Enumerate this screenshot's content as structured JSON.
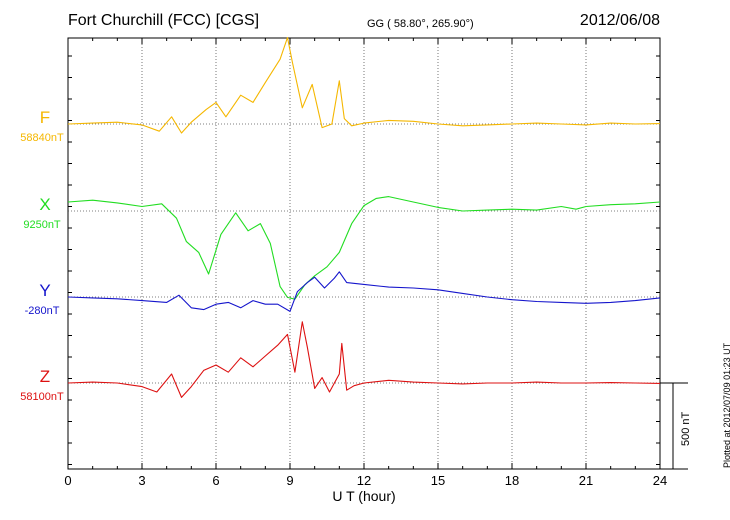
{
  "header": {
    "station": "Fort Churchill (FCC)  [CGS]",
    "coords": "GG ( 58.80°, 265.90°)",
    "date": "2012/06/08"
  },
  "footer": {
    "plotted": "Plotted at 2012/07/09 01:23  UT"
  },
  "chart_data": {
    "type": "line",
    "xlabel": "U T (hour)",
    "xlim": [
      0,
      24
    ],
    "xticks": [
      0,
      3,
      6,
      9,
      12,
      15,
      18,
      21,
      24
    ],
    "xtick_labels": [
      "0",
      "3",
      "6",
      "9",
      "12",
      "15",
      "18",
      "21",
      "24"
    ],
    "scale_bar_label": "500 nT",
    "scale_bar_nT": 500,
    "series": [
      {
        "name": "F",
        "baseline_label": "58840nT",
        "baseline_nT": 58840,
        "color": "#f5b700",
        "points": [
          [
            0,
            58840
          ],
          [
            1,
            58845
          ],
          [
            2,
            58850
          ],
          [
            3,
            58835
          ],
          [
            3.7,
            58800
          ],
          [
            4.2,
            58880
          ],
          [
            4.6,
            58790
          ],
          [
            5,
            58850
          ],
          [
            5.6,
            58920
          ],
          [
            6,
            58960
          ],
          [
            6.4,
            58880
          ],
          [
            7,
            59000
          ],
          [
            7.5,
            58960
          ],
          [
            8,
            59070
          ],
          [
            8.6,
            59200
          ],
          [
            8.9,
            59320
          ],
          [
            9.1,
            59180
          ],
          [
            9.5,
            58930
          ],
          [
            9.9,
            59060
          ],
          [
            10.3,
            58820
          ],
          [
            10.7,
            58840
          ],
          [
            11,
            59080
          ],
          [
            11.2,
            58870
          ],
          [
            11.5,
            58830
          ],
          [
            12,
            58845
          ],
          [
            13,
            58860
          ],
          [
            14,
            58855
          ],
          [
            15,
            58840
          ],
          [
            16,
            58830
          ],
          [
            17,
            58835
          ],
          [
            18,
            58840
          ],
          [
            19,
            58845
          ],
          [
            20,
            58840
          ],
          [
            21,
            58835
          ],
          [
            22,
            58845
          ],
          [
            23,
            58840
          ],
          [
            24,
            58842
          ]
        ]
      },
      {
        "name": "X",
        "baseline_label": "9250nT",
        "baseline_nT": 9250,
        "color": "#22dd22",
        "points": [
          [
            0,
            9300
          ],
          [
            1,
            9310
          ],
          [
            2,
            9295
          ],
          [
            3,
            9275
          ],
          [
            3.8,
            9290
          ],
          [
            4.4,
            9210
          ],
          [
            4.8,
            9080
          ],
          [
            5.3,
            9020
          ],
          [
            5.7,
            8900
          ],
          [
            6.2,
            9120
          ],
          [
            6.8,
            9240
          ],
          [
            7.3,
            9140
          ],
          [
            7.8,
            9180
          ],
          [
            8.2,
            9070
          ],
          [
            8.6,
            8830
          ],
          [
            8.9,
            8770
          ],
          [
            9.2,
            8760
          ],
          [
            9.6,
            8840
          ],
          [
            10,
            8890
          ],
          [
            10.5,
            8940
          ],
          [
            11,
            9020
          ],
          [
            11.5,
            9180
          ],
          [
            12,
            9280
          ],
          [
            12.5,
            9320
          ],
          [
            13,
            9330
          ],
          [
            14,
            9300
          ],
          [
            15,
            9270
          ],
          [
            16,
            9250
          ],
          [
            17,
            9255
          ],
          [
            18,
            9260
          ],
          [
            19,
            9255
          ],
          [
            20,
            9275
          ],
          [
            20.6,
            9260
          ],
          [
            21,
            9275
          ],
          [
            22,
            9285
          ],
          [
            23,
            9290
          ],
          [
            24,
            9300
          ]
        ]
      },
      {
        "name": "Y",
        "baseline_label": "-280nT",
        "baseline_nT": -280,
        "color": "#1515cc",
        "points": [
          [
            0,
            -280
          ],
          [
            1,
            -285
          ],
          [
            2,
            -290
          ],
          [
            3,
            -300
          ],
          [
            4,
            -310
          ],
          [
            4.5,
            -270
          ],
          [
            5,
            -340
          ],
          [
            5.5,
            -350
          ],
          [
            6,
            -320
          ],
          [
            6.5,
            -310
          ],
          [
            7,
            -340
          ],
          [
            7.5,
            -300
          ],
          [
            8,
            -320
          ],
          [
            8.5,
            -320
          ],
          [
            9,
            -360
          ],
          [
            9.3,
            -250
          ],
          [
            9.7,
            -200
          ],
          [
            10,
            -170
          ],
          [
            10.4,
            -230
          ],
          [
            10.8,
            -175
          ],
          [
            11,
            -140
          ],
          [
            11.3,
            -200
          ],
          [
            12,
            -210
          ],
          [
            13,
            -225
          ],
          [
            14,
            -230
          ],
          [
            15,
            -240
          ],
          [
            16,
            -260
          ],
          [
            17,
            -280
          ],
          [
            18,
            -295
          ],
          [
            19,
            -305
          ],
          [
            20,
            -310
          ],
          [
            21,
            -315
          ],
          [
            22,
            -310
          ],
          [
            23,
            -300
          ],
          [
            24,
            -285
          ]
        ]
      },
      {
        "name": "Z",
        "baseline_label": "58100nT",
        "baseline_nT": 58100,
        "color": "#dd1111",
        "points": [
          [
            0,
            58100
          ],
          [
            1,
            58105
          ],
          [
            2,
            58100
          ],
          [
            3,
            58080
          ],
          [
            3.6,
            58050
          ],
          [
            4.2,
            58150
          ],
          [
            4.6,
            58020
          ],
          [
            5,
            58080
          ],
          [
            5.5,
            58170
          ],
          [
            6,
            58200
          ],
          [
            6.5,
            58160
          ],
          [
            7,
            58240
          ],
          [
            7.5,
            58190
          ],
          [
            8,
            58250
          ],
          [
            8.5,
            58310
          ],
          [
            8.9,
            58370
          ],
          [
            9.2,
            58160
          ],
          [
            9.5,
            58440
          ],
          [
            9.7,
            58300
          ],
          [
            10,
            58070
          ],
          [
            10.3,
            58130
          ],
          [
            10.6,
            58050
          ],
          [
            11,
            58150
          ],
          [
            11.1,
            58320
          ],
          [
            11.3,
            58060
          ],
          [
            11.6,
            58085
          ],
          [
            12,
            58100
          ],
          [
            13,
            58115
          ],
          [
            14,
            58105
          ],
          [
            15,
            58100
          ],
          [
            16,
            58095
          ],
          [
            17,
            58100
          ],
          [
            18,
            58100
          ],
          [
            19,
            58105
          ],
          [
            20,
            58100
          ],
          [
            21,
            58100
          ],
          [
            22,
            58102
          ],
          [
            23,
            58100
          ],
          [
            24,
            58098
          ]
        ]
      }
    ]
  }
}
